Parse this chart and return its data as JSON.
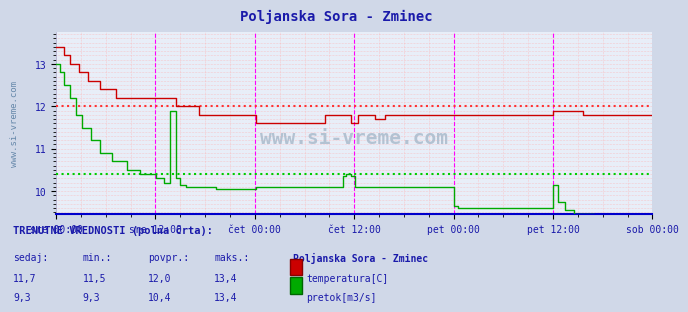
{
  "title": "Poljanska Sora - Zminec",
  "title_color": "#1a1aaa",
  "bg_color": "#d0d8e8",
  "plot_bg_color": "#e8eef8",
  "temp_color": "#cc0000",
  "flow_color": "#00aa00",
  "hline_temp": 12.0,
  "hline_flow": 10.4,
  "hline_temp_color": "#ff3333",
  "hline_flow_color": "#00cc00",
  "vline_color": "#ff00ff",
  "vline_positions": [
    0.5,
    1.0,
    1.5,
    2.0,
    2.5
  ],
  "grid_color": "#ffaaaa",
  "xlim": [
    0,
    3.0
  ],
  "ylim": [
    9.45,
    13.75
  ],
  "yticks": [
    10,
    11,
    12,
    13
  ],
  "x_tick_positions": [
    0.0,
    0.5,
    1.0,
    1.5,
    2.0,
    2.5,
    3.0
  ],
  "x_tick_labels": [
    "sre 00:00",
    "sre 12:00",
    "čet 00:00",
    "čet 12:00",
    "pet 00:00",
    "pet 12:00",
    "sob 00:00"
  ],
  "watermark": "www.si-vreme.com",
  "side_label": "www.si-vreme.com",
  "footer_title": "TRENUTNE VREDNOSTI (polna črta):",
  "footer_headers": [
    "sedaj:",
    "min.:",
    "povpr.:",
    "maks.:"
  ],
  "footer_temp_vals": [
    "11,7",
    "11,5",
    "12,0",
    "13,4"
  ],
  "footer_flow_vals": [
    "9,3",
    "9,3",
    "10,4",
    "13,4"
  ],
  "footer_station": "Poljanska Sora - Zminec",
  "footer_temp_label": "temperatura[C]",
  "footer_flow_label": "pretok[m3/s]",
  "axis_label_color": "#1a1aaa",
  "footer_text_color": "#1a1aaa"
}
